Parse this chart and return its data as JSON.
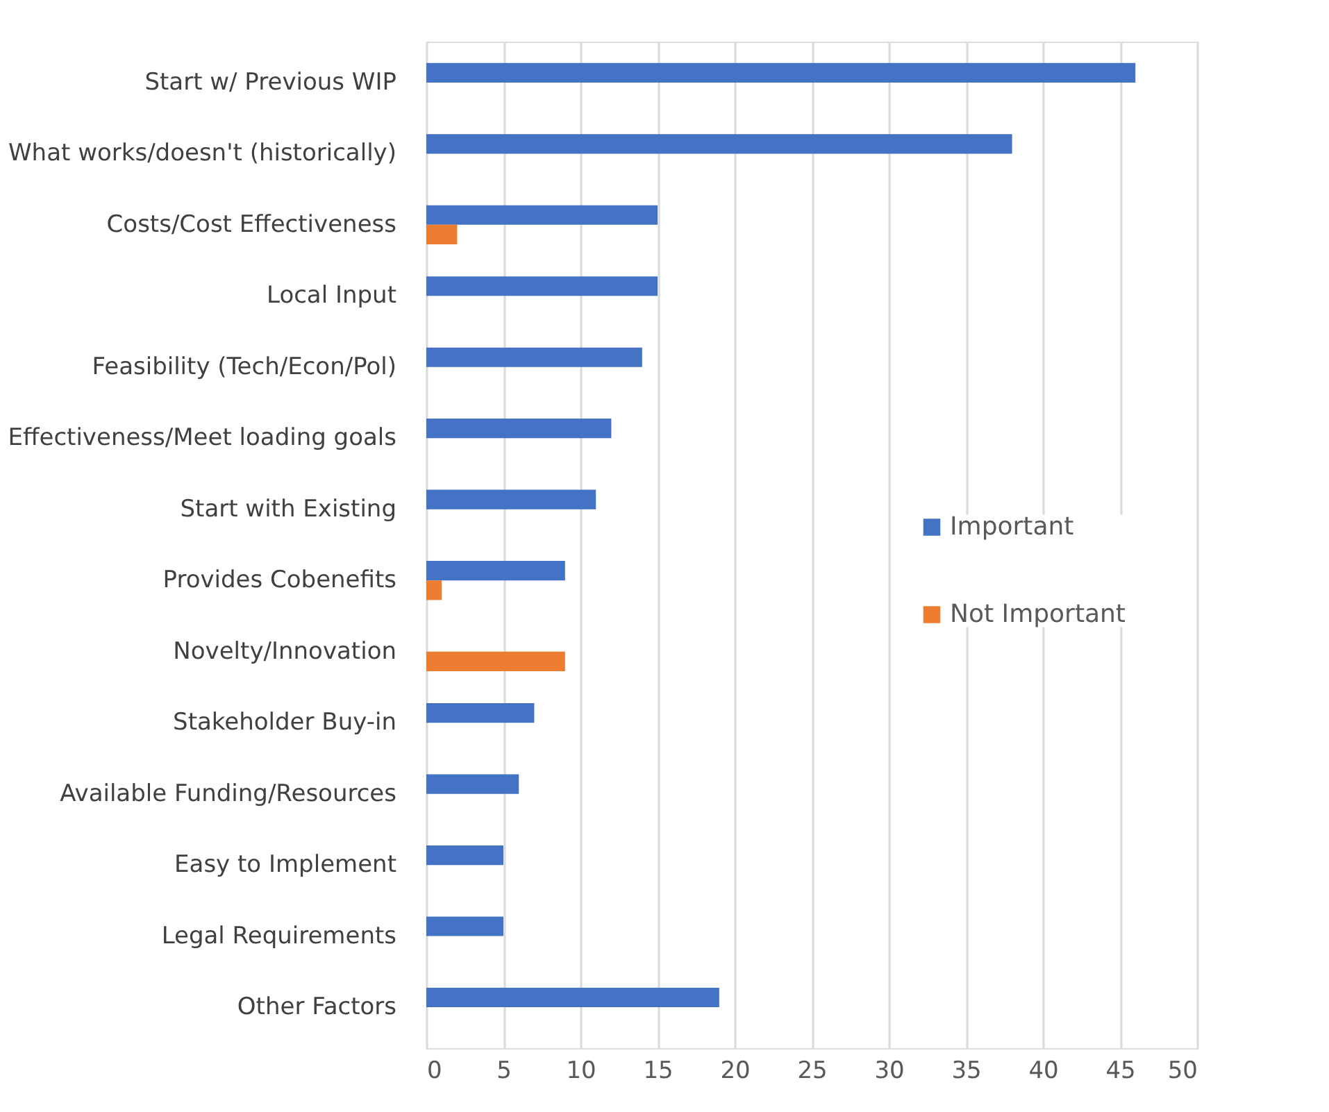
{
  "chart_data": {
    "type": "bar",
    "orientation": "horizontal",
    "categories": [
      "Start w/ Previous WIP",
      "What works/doesn't (historically)",
      "Costs/Cost Effectiveness",
      "Local Input",
      "Feasibility (Tech/Econ/Pol)",
      "Effectiveness/Meet loading goals",
      "Start with Existing",
      "Provides Cobenefits",
      "Novelty/Innovation",
      "Stakeholder Buy-in",
      "Available Funding/Resources",
      "Easy to Implement",
      "Legal Requirements",
      "Other Factors"
    ],
    "series": [
      {
        "name": "Important",
        "color": "#4472c4",
        "values": [
          46,
          38,
          15,
          15,
          14,
          12,
          11,
          9,
          null,
          7,
          6,
          5,
          5,
          19
        ]
      },
      {
        "name": "Not Important",
        "color": "#ed7d31",
        "values": [
          null,
          null,
          2,
          null,
          null,
          null,
          null,
          1,
          9,
          null,
          null,
          null,
          null,
          null
        ]
      }
    ],
    "xlim": [
      0,
      50
    ],
    "xticks": [
      0,
      5,
      10,
      15,
      20,
      25,
      30,
      35,
      40,
      45,
      50
    ],
    "grid": "x",
    "legend": "right"
  }
}
